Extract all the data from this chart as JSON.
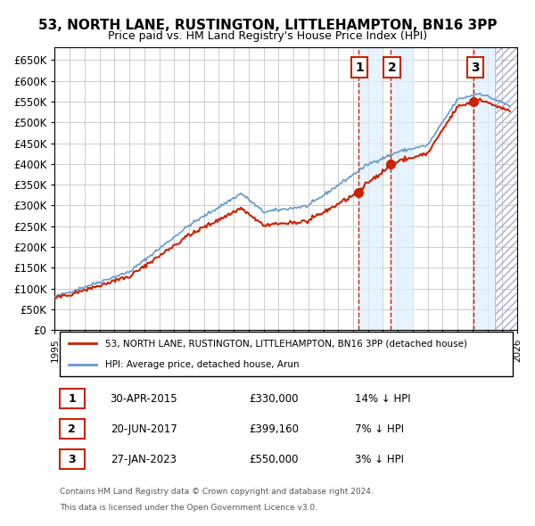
{
  "title": "53, NORTH LANE, RUSTINGTON, LITTLEHAMPTON, BN16 3PP",
  "subtitle": "Price paid vs. HM Land Registry's House Price Index (HPI)",
  "legend_line1": "53, NORTH LANE, RUSTINGTON, LITTLEHAMPTON, BN16 3PP (detached house)",
  "legend_line2": "HPI: Average price, detached house, Arun",
  "sale_entries": [
    {
      "num": 1,
      "date": "30-APR-2015",
      "price": "£330,000",
      "pct": "14% ↓ HPI"
    },
    {
      "num": 2,
      "date": "20-JUN-2017",
      "price": "£399,160",
      "pct": "7% ↓ HPI"
    },
    {
      "num": 3,
      "date": "27-JAN-2023",
      "price": "£550,000",
      "pct": "3% ↓ HPI"
    }
  ],
  "footer1": "Contains HM Land Registry data © Crown copyright and database right 2024.",
  "footer2": "This data is licensed under the Open Government Licence v3.0.",
  "hpi_color": "#6699cc",
  "price_color": "#cc2200",
  "sale_marker_color": "#cc2200",
  "vline_color": "#cc2200",
  "shade_color": "#ddeeff",
  "grid_color": "#cccccc",
  "bg_color": "#ffffff",
  "ylim": [
    0,
    680000
  ],
  "yticks": [
    0,
    50000,
    100000,
    150000,
    200000,
    250000,
    300000,
    350000,
    400000,
    450000,
    500000,
    550000,
    600000,
    650000
  ],
  "xstart": 1995,
  "xend": 2026
}
